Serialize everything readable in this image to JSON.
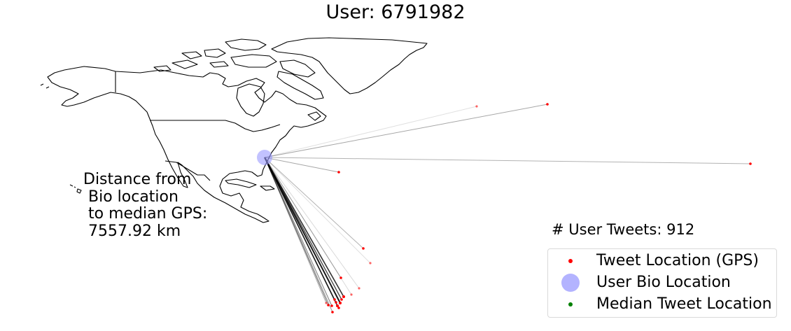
{
  "title": "User: 6791982",
  "distance_annotation": "Distance from\n Bio location\n to median GPS:\n 7557.92 km",
  "tweet_count_label": "# User Tweets: 912",
  "legend": [
    {
      "label": "Tweet Location (GPS)",
      "color": "#ff0000",
      "marker": "small-dot"
    },
    {
      "label": "User Bio Location",
      "color": "#b3b3ff",
      "marker": "large-circle"
    },
    {
      "label": "Median Tweet Location",
      "color": "#008000",
      "marker": "small-dot"
    }
  ],
  "colors": {
    "coastline": "#000000",
    "tweet_point": "#ff0000",
    "bio_location": "#9999ff",
    "connector_line": "#000000"
  }
}
